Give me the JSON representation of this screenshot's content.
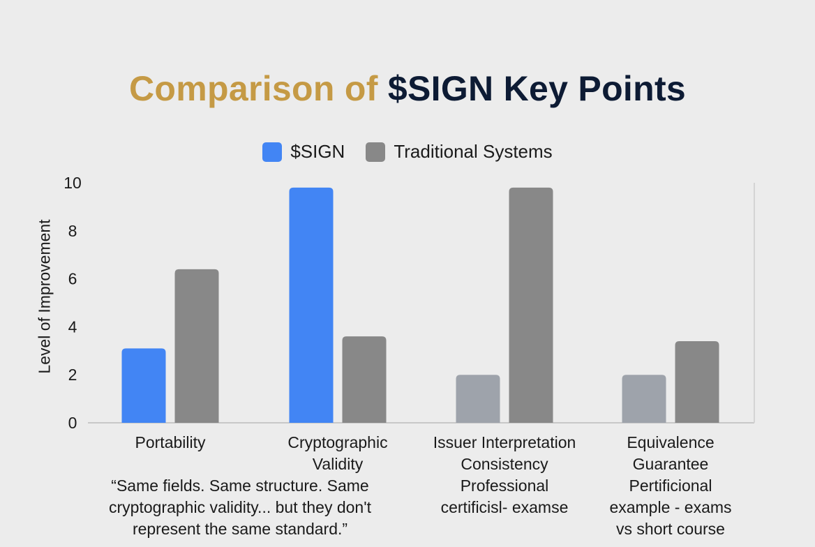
{
  "chart_data": {
    "type": "bar",
    "title": {
      "part1": "Comparison of",
      "part2": "$SIGN Key Points"
    },
    "ylabel": "Level of Improvement",
    "xlabel": "",
    "ylim": [
      0,
      10
    ],
    "yticks": [
      "0",
      "2",
      "4",
      "6",
      "8",
      "10"
    ],
    "grid": false,
    "legend_position": "top-center",
    "categories": [
      [
        "Portability"
      ],
      [
        "Cryptographic",
        "Validity"
      ],
      [
        "Issuer Interpretation",
        "Consistency",
        "Professional",
        "certificisl- examse"
      ],
      [
        "Equivalence",
        "Guarantee",
        "Pertificional",
        "example - exams",
        "vs short course"
      ]
    ],
    "series": [
      {
        "name": "$SIGN",
        "color": "#4285f4",
        "values": [
          3.1,
          9.8,
          2.0,
          2.0
        ]
      },
      {
        "name": "Traditional Systems",
        "color": "#888888",
        "values": [
          6.4,
          3.6,
          9.8,
          3.4
        ]
      }
    ],
    "muted_bar_color": "#9ea3ab",
    "annotation": [
      "“Same fields. Same structure. Same",
      "cryptographic validity... but they don't",
      "represent the same standard.”"
    ]
  }
}
